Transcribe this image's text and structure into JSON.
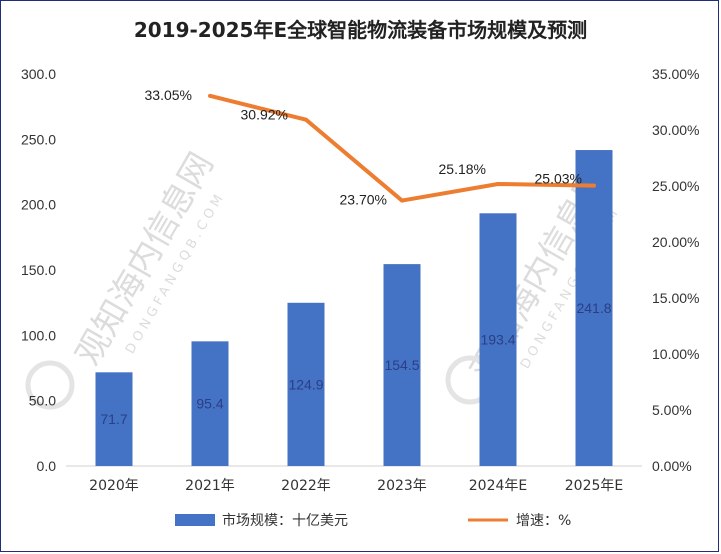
{
  "chart_data": {
    "type": "bar",
    "title": "2019-2025年E全球智能物流装备市场规模及预测",
    "categories": [
      "2020年",
      "2021年",
      "2022年",
      "2023年",
      "2024年E",
      "2025年E"
    ],
    "series": [
      {
        "name": "市场规模：十亿美元",
        "type": "bar",
        "axis": "left",
        "values": [
          71.7,
          95.4,
          124.9,
          154.5,
          193.4,
          241.8
        ],
        "labels": [
          "71.7",
          "95.4",
          "124.9",
          "154.5",
          "193.4",
          "241.8"
        ]
      },
      {
        "name": "增速：%",
        "type": "line",
        "axis": "right",
        "values": [
          null,
          33.05,
          30.92,
          23.7,
          25.18,
          25.03
        ],
        "labels": [
          "",
          "33.05%",
          "30.92%",
          "23.70%",
          "25.18%",
          "25.03%"
        ]
      }
    ],
    "ylim_left": [
      0,
      300
    ],
    "ylim_right": [
      0,
      35
    ],
    "yticks_left": [
      "0.0",
      "50.0",
      "100.0",
      "150.0",
      "200.0",
      "250.0",
      "300.0"
    ],
    "yticks_right": [
      "0.00%",
      "5.00%",
      "10.00%",
      "15.00%",
      "20.00%",
      "25.00%",
      "30.00%",
      "35.00%"
    ],
    "grid": false,
    "legend": "bottom"
  },
  "colors": {
    "bar": "#4472c4",
    "line": "#ed7d31"
  },
  "watermark": {
    "cn": "观知海内信息网",
    "en": "DONGFANGQB.COM"
  }
}
